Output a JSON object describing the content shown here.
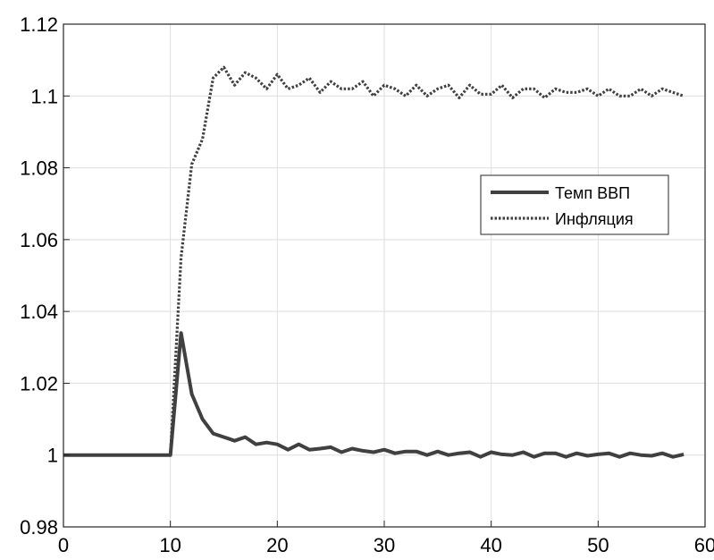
{
  "chart_data": {
    "type": "line",
    "title": "",
    "xlabel": "",
    "ylabel": "",
    "xlim": [
      0,
      60
    ],
    "ylim": [
      0.98,
      1.12
    ],
    "grid": true,
    "legend_position": "right-middle",
    "x_ticks": [
      "0",
      "10",
      "20",
      "30",
      "40",
      "50",
      "60"
    ],
    "y_ticks": [
      "0.98",
      "1",
      "1.02",
      "1.04",
      "1.06",
      "1.08",
      "1.1",
      "1.12"
    ],
    "x_tick_values": [
      0,
      10,
      20,
      30,
      40,
      50,
      60
    ],
    "y_tick_values": [
      0.98,
      1.0,
      1.02,
      1.04,
      1.06,
      1.08,
      1.1,
      1.12
    ],
    "x": [
      0,
      1,
      2,
      3,
      4,
      5,
      6,
      7,
      8,
      9,
      10,
      11,
      12,
      13,
      14,
      15,
      16,
      17,
      18,
      19,
      20,
      21,
      22,
      23,
      24,
      25,
      26,
      27,
      28,
      29,
      30,
      31,
      32,
      33,
      34,
      35,
      36,
      37,
      38,
      39,
      40,
      41,
      42,
      43,
      44,
      45,
      46,
      47,
      48,
      49,
      50,
      51,
      52,
      53,
      54,
      55,
      56,
      57,
      58
    ],
    "series": [
      {
        "name": "Темп ВВП",
        "style": "solid",
        "color": "#404040",
        "values": [
          1.0,
          1.0,
          1.0,
          1.0,
          1.0,
          1.0,
          1.0,
          1.0,
          1.0,
          1.0,
          1.0,
          1.034,
          1.017,
          1.01,
          1.006,
          1.005,
          1.004,
          1.005,
          1.003,
          1.0035,
          1.003,
          1.0015,
          1.003,
          1.0015,
          1.0018,
          1.0022,
          1.0008,
          1.0018,
          1.0012,
          1.0008,
          1.0015,
          1.0005,
          1.001,
          1.001,
          1.0,
          1.001,
          1.0,
          1.0005,
          1.0008,
          0.9995,
          1.0008,
          1.0002,
          1.0,
          1.0008,
          0.9995,
          1.0005,
          1.0005,
          0.9995,
          1.0005,
          0.9998,
          1.0002,
          1.0005,
          0.9995,
          1.0005,
          1.0,
          0.9998,
          1.0005,
          0.9995,
          1.0002
        ]
      },
      {
        "name": "Инфляция",
        "style": "dotted",
        "color": "#404040",
        "values": [
          1.0,
          1.0,
          1.0,
          1.0,
          1.0,
          1.0,
          1.0,
          1.0,
          1.0,
          1.0,
          1.0,
          1.055,
          1.081,
          1.088,
          1.105,
          1.108,
          1.103,
          1.1065,
          1.105,
          1.102,
          1.106,
          1.102,
          1.103,
          1.105,
          1.101,
          1.104,
          1.102,
          1.102,
          1.104,
          1.1,
          1.103,
          1.102,
          1.1,
          1.103,
          1.1,
          1.102,
          1.103,
          1.0995,
          1.103,
          1.1005,
          1.1005,
          1.103,
          1.0995,
          1.102,
          1.102,
          1.0995,
          1.102,
          1.101,
          1.101,
          1.102,
          1.1,
          1.102,
          1.1,
          1.1,
          1.102,
          1.1,
          1.102,
          1.101,
          1.1
        ]
      }
    ]
  }
}
